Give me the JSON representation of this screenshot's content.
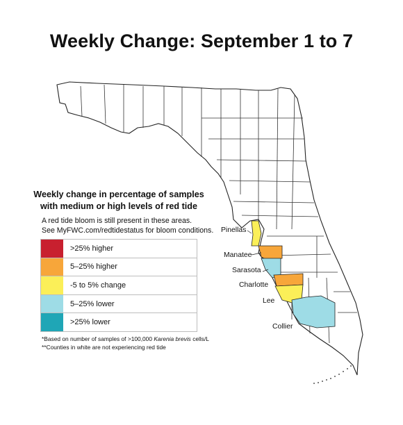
{
  "title": "Weekly Change: September 1 to 7",
  "legend": {
    "heading_line1": "Weekly change in percentage of samples",
    "heading_line2": "with medium or high levels of red tide",
    "note_line1": "A red tide bloom is still present in these areas.",
    "note_line2": "See MyFWC.com/redtidestatus for bloom conditions.",
    "items": [
      {
        "label": ">25% higher",
        "color": "#c8202f"
      },
      {
        "label": "5–25% higher",
        "color": "#f7a63a"
      },
      {
        "label": "-5 to 5% change",
        "color": "#fbef58"
      },
      {
        "label": "5–25% lower",
        "color": "#9edce6"
      },
      {
        "label": ">25% lower",
        "color": "#1fa6b6"
      }
    ],
    "footnote1_prefix": "*Based on number of samples of >100,000 ",
    "footnote1_species": "Karenia brevis",
    "footnote1_suffix": " cells/L",
    "footnote2": "**Counties in white are not experiencing red tide"
  },
  "counties": [
    {
      "name": "Pinellas",
      "category": "-5 to 5% change"
    },
    {
      "name": "Manatee",
      "category": "5–25% higher"
    },
    {
      "name": "Sarasota",
      "category": "5–25% lower"
    },
    {
      "name": "Charlotte",
      "category": "5–25% higher"
    },
    {
      "name": "Lee",
      "category": "-5 to 5% change"
    },
    {
      "name": "Collier",
      "category": "5–25% lower"
    }
  ],
  "colors": {
    "county_border": "#333333",
    "land": "#ffffff"
  }
}
